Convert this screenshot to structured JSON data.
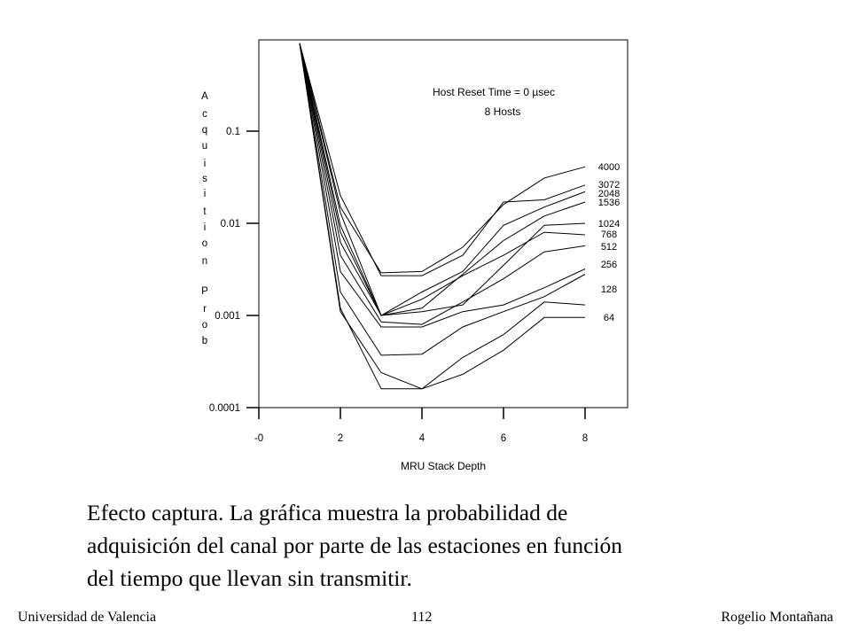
{
  "chart_data": {
    "type": "line",
    "annotation": [
      "Host Reset Time = 0 µsec",
      "8 Hosts"
    ],
    "xlabel": "MRU Stack Depth",
    "ylabel": "Acquisition Prob",
    "y_scale": "log",
    "xlim": [
      0,
      9
    ],
    "ylim": [
      0.0001,
      1
    ],
    "x_ticks": [
      "-0",
      "2",
      "4",
      "6",
      "8"
    ],
    "y_ticks": [
      "0.1",
      "0.01",
      "0.001",
      "0.0001"
    ],
    "x": [
      1,
      2,
      3,
      4,
      5,
      6,
      7,
      8
    ],
    "series": [
      {
        "name": "4000",
        "values": [
          0.9,
          0.015,
          0.0029,
          0.003,
          0.0055,
          0.016,
          0.031,
          0.041
        ]
      },
      {
        "name": "3072",
        "values": [
          0.9,
          0.02,
          0.0027,
          0.0027,
          0.0045,
          0.017,
          0.018,
          0.026
        ]
      },
      {
        "name": "2048",
        "values": [
          0.9,
          0.013,
          0.001,
          0.0018,
          0.003,
          0.0095,
          0.015,
          0.022
        ]
      },
      {
        "name": "1536",
        "values": [
          0.9,
          0.0095,
          0.001,
          0.0012,
          0.0028,
          0.0065,
          0.012,
          0.017
        ]
      },
      {
        "name": "1024",
        "values": [
          0.9,
          0.008,
          0.001,
          0.0011,
          0.0013,
          0.0035,
          0.0095,
          0.01
        ]
      },
      {
        "name": "768",
        "values": [
          0.9,
          0.0062,
          0.001,
          0.0015,
          0.0027,
          0.0045,
          0.008,
          0.0075
        ]
      },
      {
        "name": "512",
        "values": [
          0.9,
          0.0045,
          0.00085,
          0.0008,
          0.0014,
          0.0025,
          0.0049,
          0.0057
        ]
      },
      {
        "name": "256",
        "values": [
          0.9,
          0.003,
          0.00075,
          0.00075,
          0.0011,
          0.0013,
          0.002,
          0.0032
        ]
      },
      {
        "name": "128",
        "values": [
          0.9,
          0.0018,
          0.00037,
          0.00038,
          0.00075,
          0.0011,
          0.0016,
          0.0028
        ]
      },
      {
        "name": "64",
        "values": [
          0.9,
          0.0011,
          0.00024,
          0.00016,
          0.00035,
          0.00062,
          0.0014,
          0.0013
        ]
      },
      {
        "name": "",
        "values": [
          0.9,
          0.0012,
          0.00016,
          0.00016,
          0.00023,
          0.00042,
          0.00095,
          0.00095
        ]
      }
    ]
  },
  "caption": {
    "line1": "Efecto captura. La gráfica muestra la probabilidad de",
    "line2": "adquisición del canal por parte de las estaciones en función",
    "line3": "del tiempo que llevan sin transmitir."
  },
  "footer": {
    "left": "Universidad de Valencia",
    "page": "112",
    "right": "Rogelio Montañana"
  }
}
